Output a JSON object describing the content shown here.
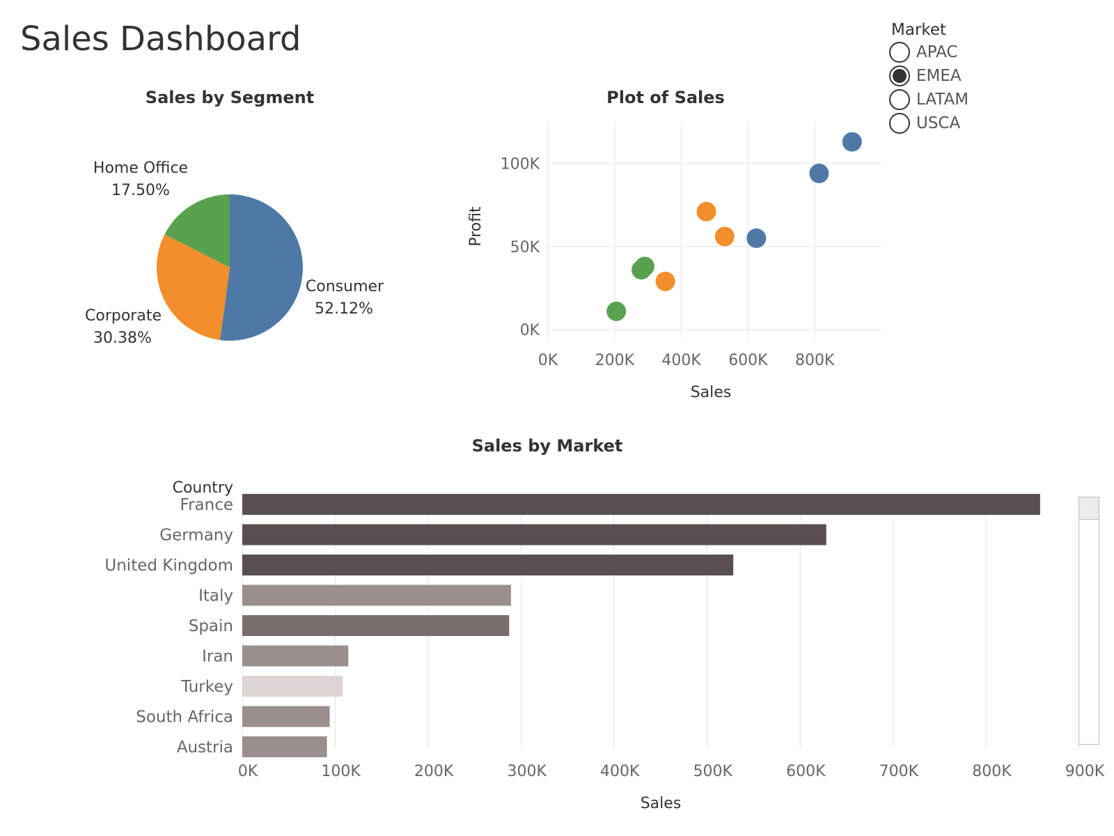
{
  "dashboard": {
    "title": "Sales Dashboard"
  },
  "legend": {
    "title": "Market",
    "items": [
      {
        "label": "APAC",
        "selected": false
      },
      {
        "label": "EMEA",
        "selected": true
      },
      {
        "label": "LATAM",
        "selected": false
      },
      {
        "label": "USCA",
        "selected": false
      }
    ]
  },
  "colors": {
    "consumer": "#4e79a7",
    "corporate": "#f28e2b",
    "home_office": "#59a14f",
    "bar_dark": "#5a4f4f",
    "bar_mid_dark": "#7a6e6c",
    "bar_mid": "#9a8f8d",
    "bar_light": "#ddd5d3",
    "grid": "#ebebeb"
  },
  "chart_data": [
    {
      "type": "pie",
      "title": "Sales by Segment",
      "slices": [
        {
          "label": "Consumer",
          "pct_label": "52.12%",
          "value": 52.12,
          "color": "#4e79a7"
        },
        {
          "label": "Corporate",
          "pct_label": "30.38%",
          "value": 30.38,
          "color": "#f28e2b"
        },
        {
          "label": "Home Office",
          "pct_label": "17.50%",
          "value": 17.5,
          "color": "#59a14f"
        }
      ]
    },
    {
      "type": "scatter",
      "title": "Plot of Sales",
      "xlabel": "Sales",
      "ylabel": "Profit",
      "xlim": [
        0,
        1000000
      ],
      "ylim": [
        -5000,
        125000
      ],
      "xticks": [
        0,
        200000,
        400000,
        600000,
        800000
      ],
      "xtick_labels": [
        "0K",
        "200K",
        "400K",
        "600K",
        "800K"
      ],
      "yticks": [
        0,
        50000,
        100000
      ],
      "ytick_labels": [
        "0K",
        "50K",
        "100K"
      ],
      "points": [
        {
          "x": 912000,
          "y": 113000,
          "color": "#4e79a7"
        },
        {
          "x": 813000,
          "y": 94000,
          "color": "#4e79a7"
        },
        {
          "x": 625000,
          "y": 55000,
          "color": "#4e79a7"
        },
        {
          "x": 475000,
          "y": 71000,
          "color": "#f28e2b"
        },
        {
          "x": 530000,
          "y": 56000,
          "color": "#f28e2b"
        },
        {
          "x": 352000,
          "y": 29000,
          "color": "#f28e2b"
        },
        {
          "x": 290000,
          "y": 38000,
          "color": "#59a14f"
        },
        {
          "x": 280000,
          "y": 36000,
          "color": "#59a14f"
        },
        {
          "x": 205000,
          "y": 11000,
          "color": "#59a14f"
        }
      ]
    },
    {
      "type": "bar",
      "orientation": "horizontal",
      "title": "Sales by Market",
      "category_header": "Country",
      "xlabel": "Sales",
      "xlim": [
        0,
        900000
      ],
      "xticks": [
        0,
        100000,
        200000,
        300000,
        400000,
        500000,
        600000,
        700000,
        800000,
        900000
      ],
      "xtick_labels": [
        "0K",
        "100K",
        "200K",
        "300K",
        "400K",
        "500K",
        "600K",
        "700K",
        "800K",
        "900K"
      ],
      "categories": [
        "France",
        "Germany",
        "United Kingdom",
        "Italy",
        "Spain",
        "Iran",
        "Turkey",
        "South Africa",
        "Austria"
      ],
      "values": [
        858000,
        628000,
        528000,
        289000,
        287000,
        114000,
        108000,
        94000,
        91000
      ],
      "bar_colors": [
        "#5a4f4f",
        "#5a4f4f",
        "#5a4f4f",
        "#9a8f8d",
        "#7a6e6c",
        "#9a8f8d",
        "#ddd5d3",
        "#9a8f8d",
        "#9a8f8d"
      ]
    }
  ]
}
